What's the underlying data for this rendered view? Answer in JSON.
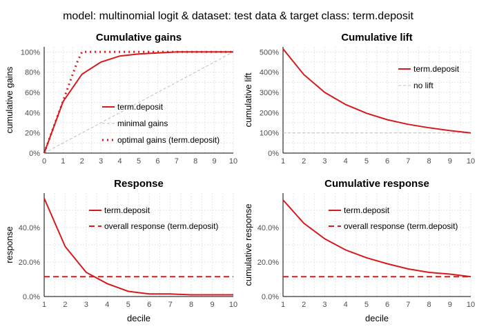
{
  "suptitle": "model: multinomial logit  &  dataset: test data  &  target class: term.deposit",
  "colors": {
    "series": "#d7191c",
    "reference": "#bfbfbf",
    "grid": "#e6e6e6",
    "axis": "#000000"
  },
  "chart_data": [
    {
      "id": "gains",
      "type": "line",
      "title": "Cumulative gains",
      "xlabel": "",
      "ylabel": "cumulative gains",
      "xlim": [
        0,
        10
      ],
      "ylim": [
        0,
        1.05
      ],
      "x_ticks": [
        "0",
        "1",
        "2",
        "3",
        "4",
        "5",
        "6",
        "7",
        "8",
        "9",
        "10"
      ],
      "y_ticks": [
        {
          "v": 0,
          "t": "0%"
        },
        {
          "v": 0.2,
          "t": "20%"
        },
        {
          "v": 0.4,
          "t": "40%"
        },
        {
          "v": 0.6,
          "t": "60%"
        },
        {
          "v": 0.8,
          "t": "80%"
        },
        {
          "v": 1.0,
          "t": "100%"
        }
      ],
      "legend_position": "center-right",
      "series": [
        {
          "name": "term.deposit",
          "style": "solid",
          "color": "#d7191c",
          "x": [
            0,
            1,
            2,
            3,
            4,
            5,
            6,
            7,
            8,
            9,
            10
          ],
          "y": [
            0,
            0.51,
            0.78,
            0.9,
            0.96,
            0.98,
            0.99,
            1.0,
            1.0,
            1.0,
            1.0
          ]
        },
        {
          "name": "minimal gains",
          "style": "dashed-gray",
          "color": "#bfbfbf",
          "x": [
            0,
            10
          ],
          "y": [
            0,
            1
          ]
        },
        {
          "name": "optimal gains (term.deposit)",
          "style": "dotted",
          "color": "#d7191c",
          "x": [
            0,
            0.3,
            0.6,
            0.9,
            1.2,
            1.5,
            1.75,
            2,
            3,
            4,
            5,
            6,
            7,
            8,
            9,
            10
          ],
          "y": [
            0,
            0.155,
            0.31,
            0.465,
            0.62,
            0.775,
            0.9,
            1.0,
            1.0,
            1.0,
            1.0,
            1.0,
            1.0,
            1.0,
            1.0,
            1.0
          ]
        }
      ]
    },
    {
      "id": "lift",
      "type": "line",
      "title": "Cumulative lift",
      "xlabel": "",
      "ylabel": "cumulative lift",
      "xlim": [
        1,
        10
      ],
      "ylim": [
        0,
        5.25
      ],
      "x_ticks": [
        "1",
        "2",
        "3",
        "4",
        "5",
        "6",
        "7",
        "8",
        "9",
        "10"
      ],
      "y_ticks": [
        {
          "v": 0,
          "t": "0%"
        },
        {
          "v": 1,
          "t": "100%"
        },
        {
          "v": 2,
          "t": "200%"
        },
        {
          "v": 3,
          "t": "300%"
        },
        {
          "v": 4,
          "t": "400%"
        },
        {
          "v": 5,
          "t": "500%"
        }
      ],
      "legend_position": "top-right",
      "series": [
        {
          "name": "term.deposit",
          "style": "solid",
          "color": "#d7191c",
          "x": [
            1,
            2,
            3,
            4,
            5,
            6,
            7,
            8,
            9,
            10
          ],
          "y": [
            5.15,
            3.88,
            3.0,
            2.4,
            1.97,
            1.65,
            1.42,
            1.25,
            1.11,
            1.0
          ]
        },
        {
          "name": "no lift",
          "style": "dashed-gray",
          "color": "#bfbfbf",
          "x": [
            1,
            10
          ],
          "y": [
            1,
            1
          ]
        }
      ]
    },
    {
      "id": "response",
      "type": "line",
      "title": "Response",
      "xlabel": "decile",
      "ylabel": "response",
      "xlim": [
        1,
        10
      ],
      "ylim": [
        0,
        0.6
      ],
      "x_ticks": [
        "1",
        "2",
        "3",
        "4",
        "5",
        "6",
        "7",
        "8",
        "9",
        "10"
      ],
      "y_ticks": [
        {
          "v": 0,
          "t": "0.0%"
        },
        {
          "v": 0.2,
          "t": "20.0%"
        },
        {
          "v": 0.4,
          "t": "40.0%"
        }
      ],
      "legend_position": "top-right",
      "series": [
        {
          "name": "term.deposit",
          "style": "solid",
          "color": "#d7191c",
          "x": [
            1,
            2,
            3,
            4,
            5,
            6,
            7,
            8,
            9,
            10
          ],
          "y": [
            0.57,
            0.29,
            0.14,
            0.075,
            0.03,
            0.015,
            0.015,
            0.01,
            0.01,
            0.01
          ]
        },
        {
          "name": "overall response (term.deposit)",
          "style": "dashed",
          "color": "#d7191c",
          "x": [
            1,
            10
          ],
          "y": [
            0.115,
            0.115
          ]
        }
      ]
    },
    {
      "id": "cumresp",
      "type": "line",
      "title": "Cumulative response",
      "xlabel": "decile",
      "ylabel": "cumulative response",
      "xlim": [
        1,
        10
      ],
      "ylim": [
        0,
        0.6
      ],
      "x_ticks": [
        "1",
        "2",
        "3",
        "4",
        "5",
        "6",
        "7",
        "8",
        "9",
        "10"
      ],
      "y_ticks": [
        {
          "v": 0,
          "t": "0.0%"
        },
        {
          "v": 0.2,
          "t": "20.0%"
        },
        {
          "v": 0.4,
          "t": "40.0%"
        }
      ],
      "legend_position": "top-right",
      "series": [
        {
          "name": "term.deposit",
          "style": "solid",
          "color": "#d7191c",
          "x": [
            1,
            2,
            3,
            4,
            5,
            6,
            7,
            8,
            9,
            10
          ],
          "y": [
            0.56,
            0.425,
            0.335,
            0.27,
            0.225,
            0.19,
            0.16,
            0.14,
            0.13,
            0.115
          ]
        },
        {
          "name": "overall response (term.deposit)",
          "style": "dashed",
          "color": "#d7191c",
          "x": [
            1,
            10
          ],
          "y": [
            0.115,
            0.115
          ]
        }
      ]
    }
  ]
}
